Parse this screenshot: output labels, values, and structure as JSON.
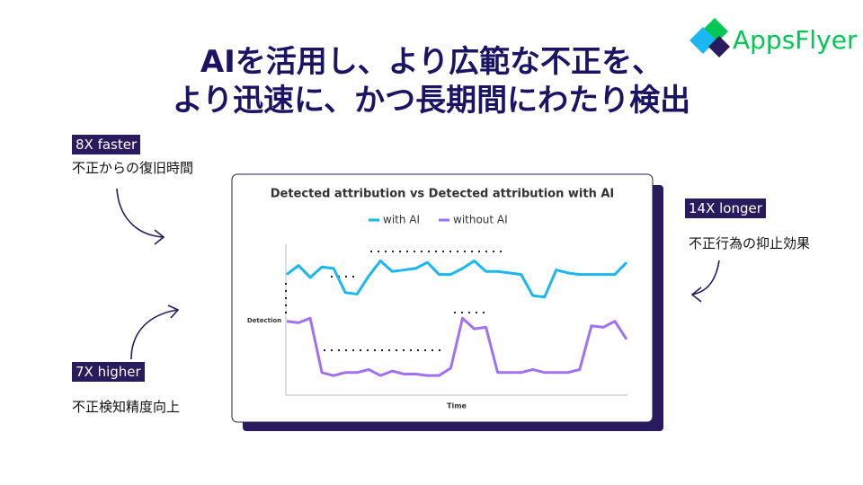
{
  "header": {
    "title": [
      "AIを活用し、より広範な不正を、",
      "より迅速に、かつ長期間にわたり検出"
    ],
    "logo": "AppsFlyer"
  },
  "callouts": [
    {
      "badge": "8X faster",
      "text": "不正からの復旧時間"
    },
    {
      "badge": "7X higher",
      "text": "不正検知精度向上"
    },
    {
      "badge": "14X longer",
      "text": "不正行為の抑止効果"
    }
  ],
  "chart_data": {
    "type": "line",
    "title": "Detected attribution vs Detected attribution with AI",
    "y_label": "Detection",
    "x_label": "Time",
    "ylim": [
      0,
      100
    ],
    "series": [
      {
        "name": "with AI",
        "color": "#1ab8f0",
        "values": [
          80,
          86,
          78,
          85,
          84,
          68,
          67,
          79,
          89,
          82,
          83,
          84,
          88,
          80,
          80,
          84,
          89,
          82,
          82,
          81,
          80,
          66,
          65,
          83,
          81,
          80,
          80,
          80,
          80,
          88
        ]
      },
      {
        "name": "without AI",
        "color": "#a070f5",
        "values": [
          49,
          48,
          51,
          15,
          13,
          15,
          15,
          17,
          13,
          16,
          14,
          14,
          13,
          13,
          18,
          51,
          44,
          45,
          15,
          15,
          15,
          17,
          15,
          15,
          15,
          17,
          46,
          45,
          49,
          37
        ]
      }
    ]
  }
}
